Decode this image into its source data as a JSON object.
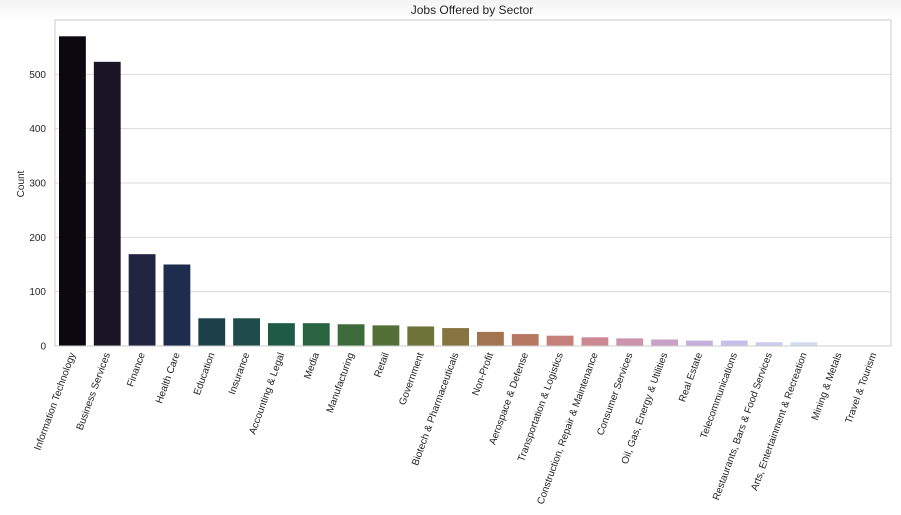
{
  "chart_data": {
    "type": "bar",
    "title": "Jobs Offered by Sector",
    "xlabel": "",
    "ylabel": "Count",
    "ylim": [
      0,
      600
    ],
    "yticks": [
      0,
      100,
      200,
      300,
      400,
      500
    ],
    "grid": true,
    "categories": [
      "Information Technology",
      "Business Services",
      "Finance",
      "Health Care",
      "Education",
      "Insurance",
      "Accounting & Legal",
      "Media",
      "Manufacturing",
      "Retail",
      "Government",
      "Biotech & Pharmaceuticals",
      "Non-Profit",
      "Aerospace & Defense",
      "Transportation & Logistics",
      "Construction, Repair & Maintenance",
      "Consumer Services",
      "Oil, Gas, Energy & Utilities",
      "Real Estate",
      "Telecommunications",
      "Restaurants, Bars & Food Services",
      "Arts, Entertainment & Recreation",
      "Mining & Metals",
      "Travel & Tourism"
    ],
    "values": [
      570,
      523,
      169,
      150,
      51,
      51,
      42,
      42,
      40,
      38,
      36,
      33,
      26,
      22,
      19,
      16,
      14,
      12,
      10,
      10,
      7,
      7,
      1,
      1
    ],
    "colors": [
      "#0d0810",
      "#1a1524",
      "#212440",
      "#1e2d4d",
      "#1c3f4a",
      "#1d4c4a",
      "#1e5a45",
      "#2a6340",
      "#3e6b3b",
      "#556f38",
      "#6e7339",
      "#887440",
      "#a2744f",
      "#b77862",
      "#c67f7a",
      "#ce8894",
      "#cd93ad",
      "#c9a0c6",
      "#c5afdb",
      "#c6bfe7",
      "#cacdee",
      "#d1dcf1",
      "#dceaf3",
      "#e8f3f4"
    ]
  }
}
